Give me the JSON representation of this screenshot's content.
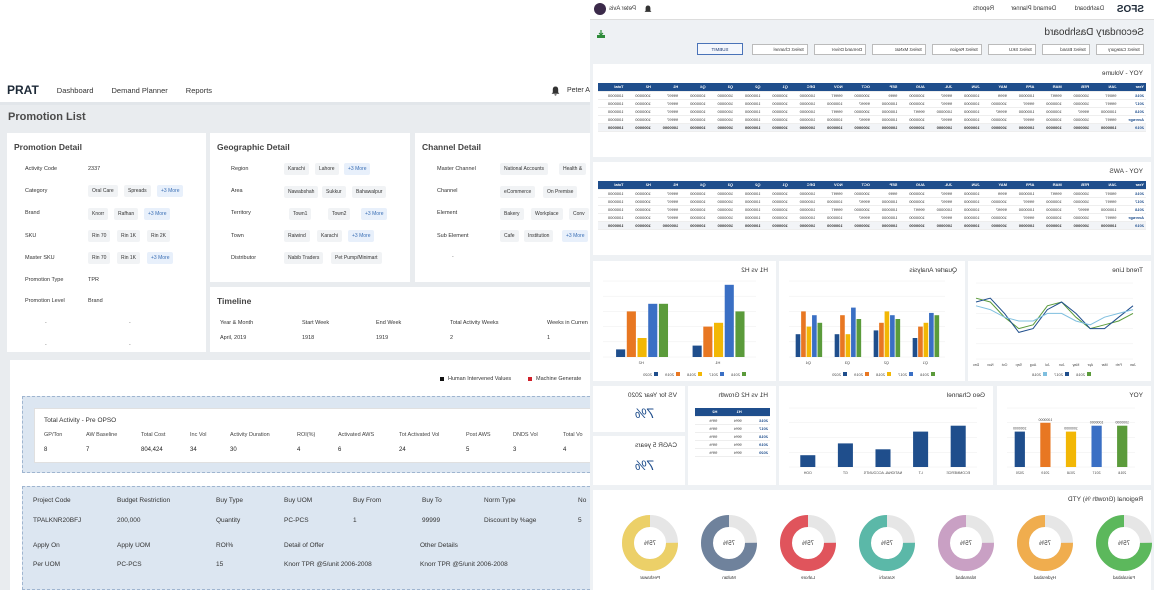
{
  "left_app": {
    "brand": "PRAT",
    "nav": [
      "Dashboard",
      "Demand Planner",
      "Reports"
    ],
    "user": "Peter A",
    "page_title": "Promotion List",
    "promotion_detail": {
      "title": "Promotion Detail",
      "activity_code_label": "Activity Code",
      "activity_code": "2337",
      "category_label": "Category",
      "category_chips": [
        "Oral Care",
        "Spreads"
      ],
      "category_more": "+3 More",
      "brand_label": "Brand",
      "brand_chips": [
        "Knorr",
        "Rafhan"
      ],
      "brand_more": "+3 More",
      "sku_label": "SKU",
      "sku_chips": [
        "Rin 70",
        "Rin 1K",
        "Rin 2K"
      ],
      "master_sku_label": "Master SKU",
      "master_sku_chips": [
        "Rin 70",
        "Rin 1K"
      ],
      "master_sku_more": "+3 More",
      "promotion_type_label": "Promotion Type",
      "promotion_type": "TPR",
      "promotion_level_label": "Promotion Level",
      "promotion_level": "Brand",
      "dash": "-"
    },
    "geographic_detail": {
      "title": "Geographic Detail",
      "region_label": "Region",
      "region_chips": [
        "Karachi",
        "Lahore"
      ],
      "region_more": "+3 More",
      "area_label": "Area",
      "area_chips": [
        "Nawabshah",
        "Sukkur",
        "Bahawalpur"
      ],
      "territory_label": "Territory",
      "territory_chips": [
        "Town1",
        "Town2"
      ],
      "territory_more": "+3 More",
      "town_label": "Town",
      "town_chips": [
        "Raiwind",
        "Karachi"
      ],
      "town_more": "+3 More",
      "distributor_label": "Distributor",
      "distributor_chips": [
        "Nabib Traders",
        "Pet Pump/Minimart"
      ]
    },
    "channel_detail": {
      "title": "Channel Detail",
      "master_channel_label": "Master Channel",
      "master_channel_chips": [
        "National Accounts",
        "Health &"
      ],
      "channel_label": "Channel",
      "channel_chips": [
        "eCommerce",
        "On Premise"
      ],
      "element_label": "Element",
      "element_chips": [
        "Bakery",
        "Workplace",
        "Conv"
      ],
      "sub_element_label": "Sub Element",
      "sub_element_chips": [
        "Cafe",
        "Institution"
      ],
      "sub_element_more": "+3 More",
      "dash": "-"
    },
    "timeline": {
      "title": "Timeline",
      "headers": [
        "Year & Month",
        "Start Week",
        "End Week",
        "Total Activity Weeks",
        "Weeks in Curren"
      ],
      "values": [
        "April, 2019",
        "1918",
        "1919",
        "2",
        "1"
      ]
    },
    "legend": {
      "human": "Human Intervened Values",
      "machine": "Machine Generate",
      "human_color": "#111111",
      "machine_color": "#d0202a"
    },
    "total_activity": {
      "title": "Total Activity - Pre OPSO",
      "headers": [
        "GP/Ton",
        "AW Baseline",
        "Total Cost",
        "Inc Vol",
        "Activity Duration",
        "ROI(%)",
        "Activated AWS",
        "Tot Activated Vol",
        "Post AWS",
        "DNDS Vol",
        "Total Vo"
      ],
      "values": [
        "8",
        "7",
        "804,424",
        "34",
        "30",
        "4",
        "6",
        "24",
        "5",
        "3",
        "4"
      ]
    },
    "project": {
      "headers1": [
        "Project Code",
        "Budget Restriction",
        "Buy Type",
        "Buy UOM",
        "Buy From",
        "Buy To",
        "Norm Type",
        "No"
      ],
      "values1": [
        "TPALKNR20BFJ",
        "200,000",
        "Quantity",
        "PC-PCS",
        "1",
        "99999",
        "Discount by %age",
        "5"
      ],
      "headers2": [
        "Apply On",
        "Apply UOM",
        "ROI%",
        "Detail of Offer",
        "Other Details"
      ],
      "values2": [
        "Per UOM",
        "PC-PCS",
        "15",
        "Knorr TPR @5/unit 2006-2008",
        "Knorr TPR @5/unit 2006-2008"
      ]
    }
  },
  "right_app": {
    "brand": "SFOS",
    "nav": [
      "Dashboard",
      "Demand Planner",
      "Reports"
    ],
    "user": "Peter Avis",
    "title": "Secondary Dashboard",
    "filters": [
      "Select Category",
      "Select Brand",
      "Select SKU",
      "Select Region",
      "Select MxNat",
      "Demand Driver",
      "Select Channel"
    ],
    "submit": "SUBMIT",
    "yoy_volume_title": "YOY - Volume",
    "yoy_aws_title": "YOY - AWS",
    "table_header": [
      "Year",
      "JAN",
      "FEB",
      "MAR",
      "APR",
      "MAY",
      "JUN",
      "JUL",
      "AUG",
      "SEP",
      "OCT",
      "NOV",
      "DEC",
      "Q1",
      "Q2",
      "Q3",
      "Q4",
      "H1",
      "H2",
      "Total"
    ],
    "table_rows": [
      {
        "year": "2016",
        "vals": [
          "99097",
          "1000000",
          "99997",
          "1000000",
          "9999",
          "1000000",
          "99997",
          "1000000",
          "9999",
          "1000000",
          "99997",
          "1000000",
          "1000000",
          "1000000",
          "1000000",
          "1000000",
          "99997",
          "1000000",
          "1000000"
        ]
      },
      {
        "year": "2017",
        "vals": [
          "99997",
          "1000000",
          "1000000",
          "99997",
          "1000000",
          "1000000",
          "99997",
          "1000000",
          "1000000",
          "99997",
          "1000000",
          "1000000",
          "1000000",
          "1000000",
          "1000000",
          "1000000",
          "99997",
          "1000000",
          "1000000"
        ]
      },
      {
        "year": "2018",
        "vals": [
          "1000000",
          "99997",
          "1000000",
          "1000000",
          "99997",
          "1000000",
          "1000000",
          "99997",
          "1000000",
          "1000000",
          "99997",
          "1000000",
          "1000000",
          "1000000",
          "1000000",
          "1000000",
          "99997",
          "1000000",
          "1000000"
        ]
      },
      {
        "year": "Average",
        "vals": [
          "99997",
          "1000000",
          "1000000",
          "99997",
          "1000000",
          "1000000",
          "99997",
          "1000000",
          "1000000",
          "99997",
          "1000000",
          "1000000",
          "1000000",
          "1000000",
          "1000000",
          "1000000",
          "99997",
          "1000000",
          "1000000"
        ]
      }
    ],
    "table_total": {
      "year": "2019",
      "vals": [
        "1000000",
        "1000000",
        "1000000",
        "1000000",
        "1000000",
        "1000000",
        "1000000",
        "1000000",
        "1000000",
        "1000000",
        "1000000",
        "1000000",
        "1000000",
        "1000000",
        "1000000",
        "1000000",
        "1000000",
        "1000000",
        "1000000"
      ]
    },
    "h1h2_title": "H1 vs H2",
    "quarter_title": "Quarter Analysis",
    "trend_title": "Trend Line",
    "vs_title": "VS for Year 2020",
    "vs_value": "7%",
    "cagr_title": "CAGR 5 years",
    "cagr_value": "7%",
    "h1h2_growth_title": "H1 vs H2 Growth",
    "h1h2_growth_header": [
      "H1",
      "H2"
    ],
    "h1h2_growth_rows": [
      {
        "year": "2016",
        "h1": "99%",
        "h2": "99%"
      },
      {
        "year": "2017",
        "h1": "99%",
        "h2": "99%"
      },
      {
        "year": "2018",
        "h1": "99%",
        "h2": "99%"
      },
      {
        "year": "2019",
        "h1": "99%",
        "h2": "99%"
      },
      {
        "year": "2020",
        "h1": "99%",
        "h2": "99%"
      }
    ],
    "geo_title": "Geo Channel",
    "yoy_title": "YOY",
    "regional_title": "Regional (Growth %) YTD",
    "years": [
      "2016",
      "2017",
      "2018",
      "2019",
      "2020"
    ],
    "year_colors": [
      "#5b9b3b",
      "#3a6fc4",
      "#f2b705",
      "#e87722",
      "#1f4e8c"
    ],
    "h1h2_categories": [
      "H1",
      "H2"
    ],
    "h1h2_values": {
      "H1": [
        60,
        95,
        45,
        40,
        15
      ],
      "H2": [
        70,
        70,
        25,
        60,
        10
      ]
    },
    "quarter_categories": [
      "Q1",
      "Q2",
      "Q3",
      "Q4"
    ],
    "quarter_values": {
      "Q1": [
        55,
        58,
        45,
        40,
        25
      ],
      "Q2": [
        50,
        55,
        60,
        45,
        35
      ],
      "Q3": [
        50,
        65,
        30,
        55,
        30
      ],
      "Q4": [
        45,
        55,
        40,
        60,
        30
      ]
    },
    "trend_months": [
      "Jan",
      "Feb",
      "Mar",
      "Apr",
      "May",
      "Jun",
      "Jul",
      "Aug",
      "Sep",
      "Oct",
      "Nov",
      "Dec"
    ],
    "trend_series": [
      {
        "name": "2016",
        "color": "#5b9b3b",
        "values": [
          60,
          50,
          45,
          40,
          55,
          75,
          70,
          45,
          40,
          55,
          75,
          80
        ]
      },
      {
        "name": "2017",
        "color": "#1f4e8c",
        "values": [
          70,
          55,
          40,
          40,
          60,
          75,
          65,
          40,
          35,
          60,
          80,
          75
        ]
      },
      {
        "name": "2018",
        "color": "#7fbfdf",
        "values": [
          65,
          60,
          55,
          45,
          50,
          60,
          60,
          50,
          50,
          55,
          65,
          70
        ]
      }
    ],
    "geo_categories": [
      "ECOMMERCE",
      "LT",
      "NATIONAL ACCOUNTS",
      "GT",
      "OOH"
    ],
    "geo_values": [
      70,
      60,
      30,
      40,
      20
    ],
    "geo_color": "#1f4e8c",
    "geo_data_labels": [
      "",
      "",
      "",
      "",
      ""
    ],
    "yoy_categories": [
      "2016",
      "2017",
      "2018",
      "2019",
      "2020"
    ],
    "yoy_values": [
      70,
      70,
      60,
      75,
      60
    ],
    "yoy_labels": [
      "1000000",
      "1000000",
      "1000000",
      "1000000",
      "1000000"
    ],
    "donut_value": "75%",
    "regions": [
      {
        "name": "Faisalabad",
        "color": "#5cb85c"
      },
      {
        "name": "Hyderabad",
        "color": "#f0ad4e"
      },
      {
        "name": "Islamabad",
        "color": "#c9a0c4"
      },
      {
        "name": "Karachi",
        "color": "#5bb8a8"
      },
      {
        "name": "Lahore",
        "color": "#e0545c"
      },
      {
        "name": "Multan",
        "color": "#6f829c"
      },
      {
        "name": "Peshawar",
        "color": "#ecd068"
      }
    ]
  },
  "chart_data": [
    {
      "type": "bar",
      "title": "H1 vs H2",
      "categories": [
        "H1",
        "H2"
      ],
      "series": [
        {
          "name": "2016",
          "values": [
            60,
            70
          ]
        },
        {
          "name": "2017",
          "values": [
            95,
            70
          ]
        },
        {
          "name": "2018",
          "values": [
            45,
            25
          ]
        },
        {
          "name": "2019",
          "values": [
            40,
            60
          ]
        },
        {
          "name": "2020",
          "values": [
            15,
            10
          ]
        }
      ]
    },
    {
      "type": "bar",
      "title": "Quarter Analysis",
      "categories": [
        "Q1",
        "Q2",
        "Q3",
        "Q4"
      ],
      "series": [
        {
          "name": "2016",
          "values": [
            55,
            50,
            50,
            45
          ]
        },
        {
          "name": "2017",
          "values": [
            58,
            55,
            65,
            55
          ]
        },
        {
          "name": "2018",
          "values": [
            45,
            60,
            30,
            40
          ]
        },
        {
          "name": "2019",
          "values": [
            40,
            45,
            55,
            60
          ]
        },
        {
          "name": "2020",
          "values": [
            25,
            35,
            30,
            30
          ]
        }
      ]
    },
    {
      "type": "line",
      "title": "Trend Line",
      "x": [
        "Jan",
        "Feb",
        "Mar",
        "Apr",
        "May",
        "Jun",
        "Jul",
        "Aug",
        "Sep",
        "Oct",
        "Nov",
        "Dec"
      ],
      "series": [
        {
          "name": "2016",
          "values": [
            60,
            50,
            45,
            40,
            55,
            75,
            70,
            45,
            40,
            55,
            75,
            80
          ]
        },
        {
          "name": "2017",
          "values": [
            70,
            55,
            40,
            40,
            60,
            75,
            65,
            40,
            35,
            60,
            80,
            75
          ]
        },
        {
          "name": "2018",
          "values": [
            65,
            60,
            55,
            45,
            50,
            60,
            60,
            50,
            50,
            55,
            65,
            70
          ]
        }
      ]
    },
    {
      "type": "bar",
      "title": "Geo Channel",
      "categories": [
        "ECOMMERCE",
        "LT",
        "NATIONAL ACCOUNTS",
        "GT",
        "OOH"
      ],
      "values": [
        70,
        60,
        30,
        40,
        20
      ]
    },
    {
      "type": "bar",
      "title": "YOY",
      "categories": [
        "2016",
        "2017",
        "2018",
        "2019",
        "2020"
      ],
      "values": [
        70,
        70,
        60,
        75,
        60
      ]
    }
  ]
}
